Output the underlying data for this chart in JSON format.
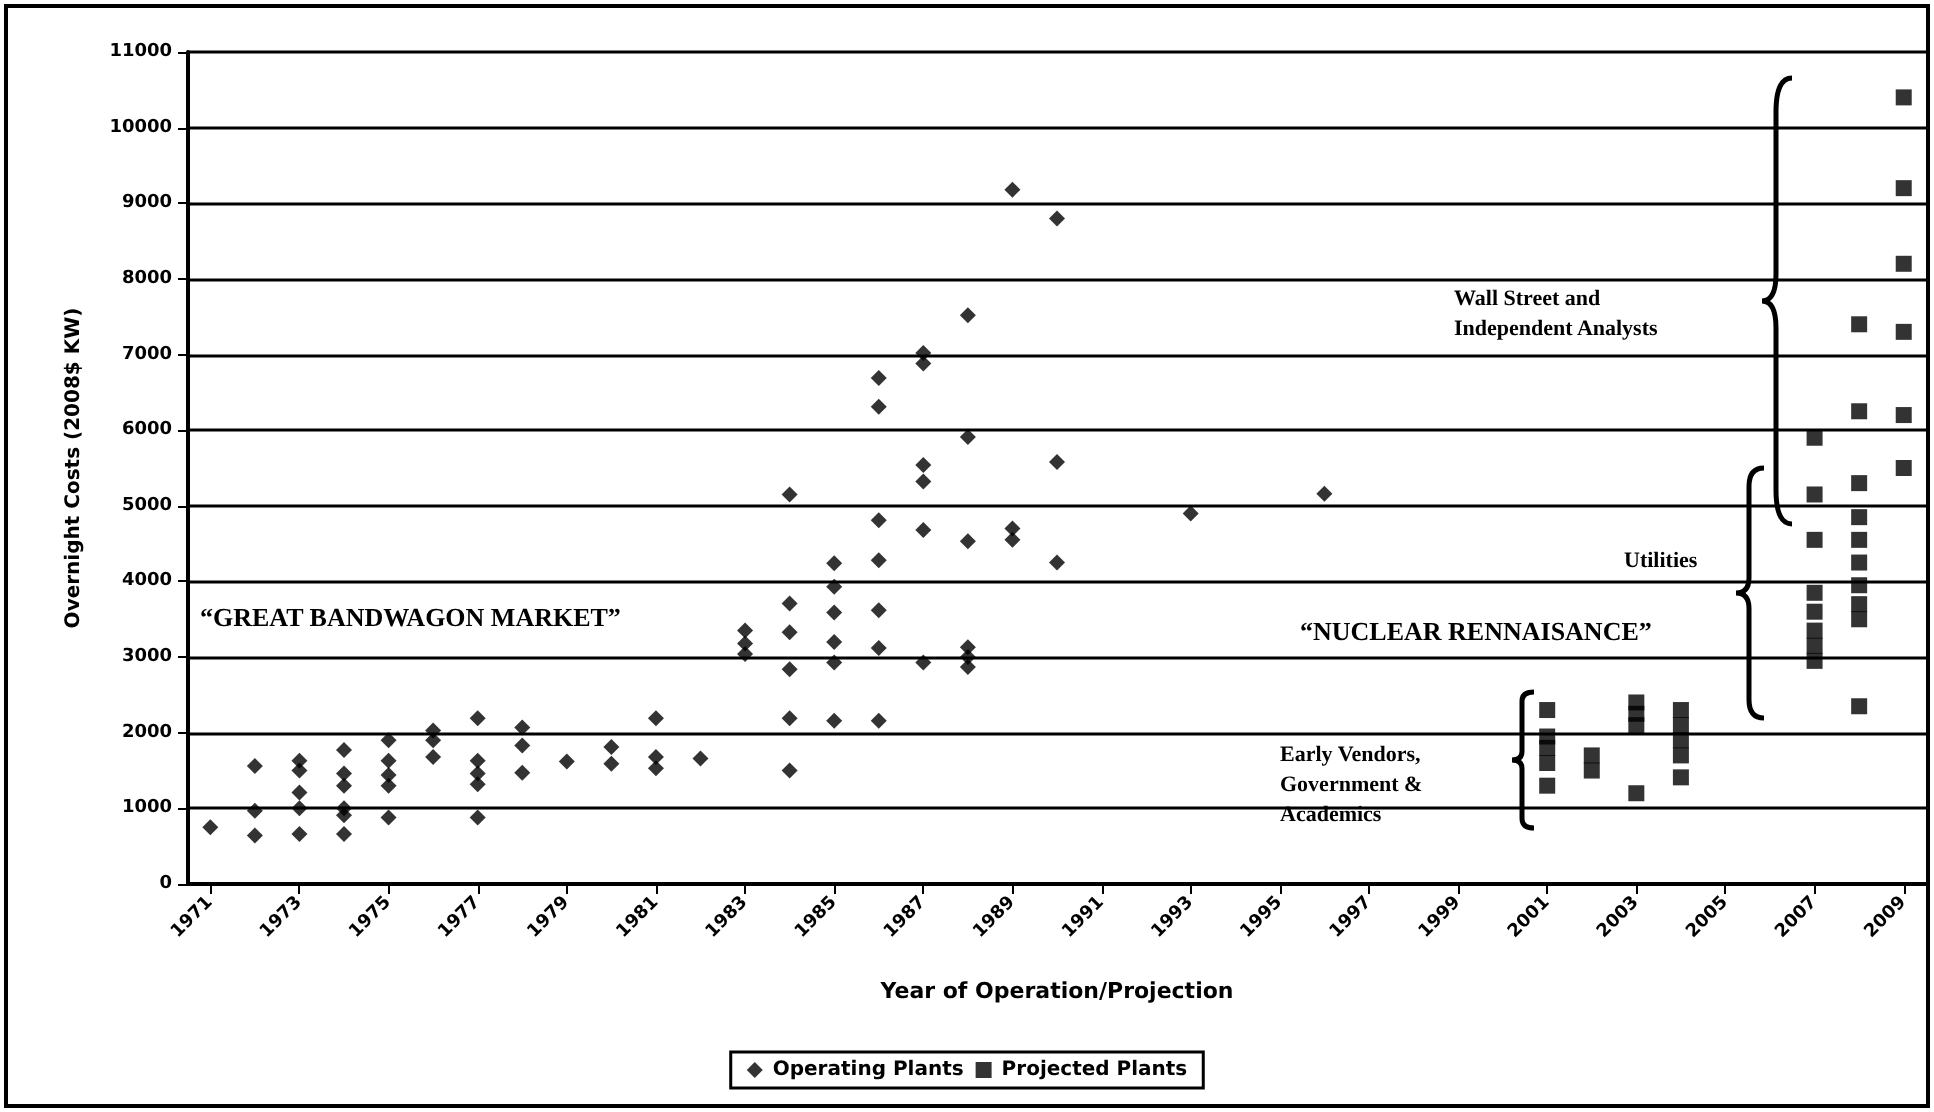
{
  "chart_data": {
    "type": "scatter",
    "xlabel": "Year of Operation/Projection",
    "ylabel": "Overnight Costs (2008$ KW)",
    "xlim": [
      1970.5,
      2009.5
    ],
    "xticks": [
      1971,
      1973,
      1975,
      1977,
      1979,
      1981,
      1983,
      1985,
      1987,
      1989,
      1991,
      1993,
      1995,
      1997,
      1999,
      2001,
      2003,
      2005,
      2007,
      2009
    ],
    "ylim": [
      0,
      11000
    ],
    "yticks": [
      0,
      1000,
      2000,
      3000,
      4000,
      5000,
      6000,
      7000,
      8000,
      9000,
      10000,
      11000
    ],
    "grid": "y",
    "legend": "bottom",
    "annotations": [
      "“GREAT BANDWAGON MARKET”",
      "“NUCLEAR RENNAISANCE”",
      "Wall Street and Independent Analysts",
      "Utilities",
      "Early Vendors, Government & Academics"
    ],
    "series": [
      {
        "name": "Operating Plants",
        "color": "#000000",
        "marker": "diamond",
        "x": [
          1971,
          1972,
          1972,
          1972,
          1973,
          1973,
          1973,
          1973,
          1973,
          1974,
          1974,
          1974,
          1974,
          1974,
          1974,
          1975,
          1975,
          1975,
          1975,
          1975,
          1976,
          1976,
          1976,
          1977,
          1977,
          1977,
          1977,
          1977,
          1978,
          1978,
          1978,
          1979,
          1980,
          1980,
          1981,
          1981,
          1981,
          1982,
          1983,
          1983,
          1983,
          1984,
          1984,
          1984,
          1984,
          1984,
          1984,
          1985,
          1985,
          1985,
          1985,
          1985,
          1985,
          1986,
          1986,
          1986,
          1986,
          1986,
          1986,
          1986,
          1987,
          1987,
          1987,
          1987,
          1987,
          1987,
          1988,
          1988,
          1988,
          1988,
          1988,
          1988,
          1989,
          1989,
          1989,
          1990,
          1990,
          1990,
          1993,
          1996
        ],
        "values": [
          750,
          1560,
          970,
          640,
          1630,
          1500,
          1210,
          1000,
          660,
          1770,
          1460,
          1300,
          1000,
          910,
          660,
          1900,
          1630,
          1440,
          1300,
          880,
          2030,
          1900,
          1680,
          2190,
          1630,
          1460,
          1320,
          880,
          2070,
          1830,
          1470,
          1620,
          1810,
          1590,
          2190,
          1680,
          1530,
          1660,
          3350,
          3180,
          3040,
          5150,
          3710,
          3330,
          2840,
          2190,
          1500,
          4240,
          3930,
          3590,
          3200,
          2930,
          2160,
          6690,
          6310,
          4810,
          4280,
          3620,
          3120,
          2160,
          7020,
          6880,
          5540,
          5320,
          4680,
          2930,
          7520,
          5910,
          4530,
          3130,
          3000,
          2870,
          9180,
          4700,
          4550,
          8800,
          5580,
          4250,
          4900,
          5160
        ]
      },
      {
        "name": "Projected Plants",
        "color": "#000000",
        "marker": "square",
        "x": [
          2001,
          2001,
          2001,
          2001,
          2001,
          2002,
          2002,
          2003,
          2003,
          2003,
          2003,
          2004,
          2004,
          2004,
          2004,
          2004,
          2007,
          2007,
          2007,
          2007,
          2007,
          2007,
          2007,
          2007,
          2008,
          2008,
          2008,
          2008,
          2008,
          2008,
          2008,
          2008,
          2008,
          2008,
          2009,
          2009,
          2009,
          2009,
          2009,
          2009
        ],
        "values": [
          2300,
          1950,
          1800,
          1600,
          1300,
          1700,
          1500,
          2400,
          2250,
          2100,
          1200,
          2300,
          2100,
          1900,
          1700,
          1410,
          5900,
          5150,
          4550,
          3850,
          3600,
          3350,
          3150,
          2950,
          7400,
          6250,
          5300,
          4850,
          4550,
          4250,
          3950,
          3700,
          3500,
          2350,
          10400,
          9200,
          8200,
          7300,
          6200,
          5500
        ]
      }
    ]
  }
}
